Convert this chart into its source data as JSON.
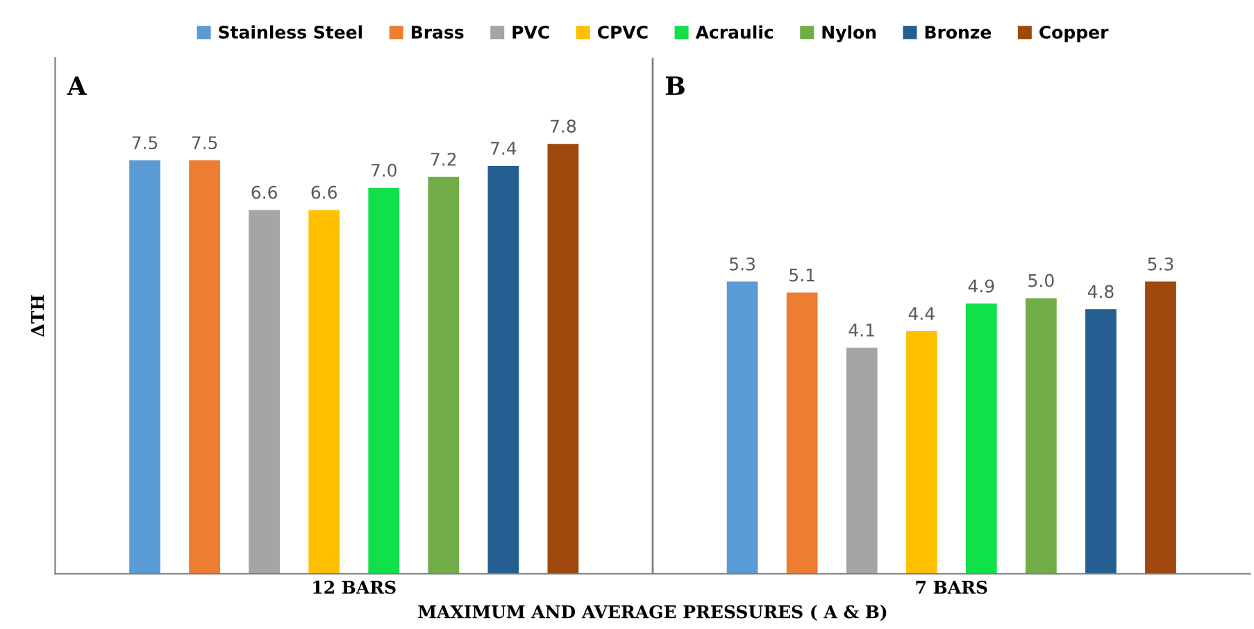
{
  "chart_data": {
    "type": "bar",
    "categories": [
      "12 BARS",
      "7 BARS"
    ],
    "xlabel": "MAXIMUM AND AVERAGE PRESSURES ( A & B)",
    "ylabel": "ΔTH",
    "annotations": [
      "A",
      "B"
    ],
    "series": [
      {
        "name": "Stainless Steel",
        "color": "#5b9bd5",
        "values": [
          7.5,
          5.3
        ],
        "value_labels": [
          "7.5",
          "5.3"
        ]
      },
      {
        "name": "Brass",
        "color": "#ed7d31",
        "values": [
          7.5,
          5.1
        ],
        "value_labels": [
          "7.5",
          "5.1"
        ]
      },
      {
        "name": "PVC",
        "color": "#a5a5a5",
        "values": [
          6.6,
          4.1
        ],
        "value_labels": [
          "6.6",
          "4.1"
        ]
      },
      {
        "name": "CPVC",
        "color": "#ffc000",
        "values": [
          6.6,
          4.4
        ],
        "value_labels": [
          "6.6",
          "4.4"
        ]
      },
      {
        "name": "Acraulic",
        "color": "#10e04a",
        "values": [
          7.0,
          4.9
        ],
        "value_labels": [
          "7.0",
          "4.9"
        ]
      },
      {
        "name": "Nylon",
        "color": "#70ad47",
        "values": [
          7.2,
          5.0
        ],
        "value_labels": [
          "7.2",
          "5.0"
        ]
      },
      {
        "name": "Bronze",
        "color": "#255e91",
        "values": [
          7.4,
          4.8
        ],
        "value_labels": [
          "7.4",
          "4.8"
        ]
      },
      {
        "name": "Copper",
        "color": "#9e480e",
        "values": [
          7.8,
          5.3
        ],
        "value_labels": [
          "7.8",
          "5.3"
        ]
      }
    ],
    "legend": "top"
  }
}
